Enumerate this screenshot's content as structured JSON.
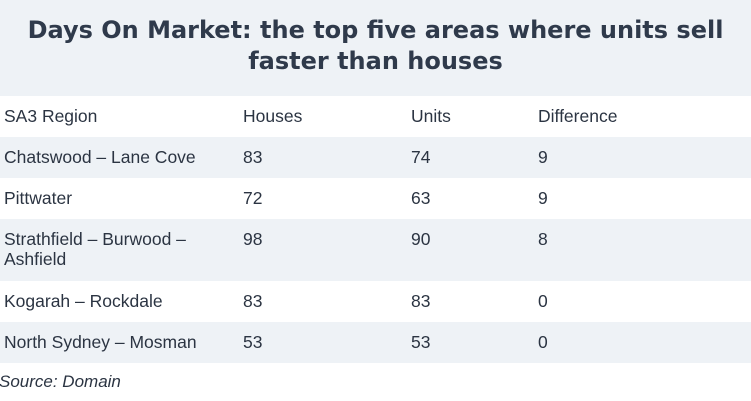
{
  "title": "Days On Market: the top five areas where units sell faster than houses",
  "chart_data": {
    "type": "table",
    "title": "Days On Market: the top five areas where units sell faster than houses",
    "columns": [
      "SA3 Region",
      "Houses",
      "Units",
      "Difference"
    ],
    "rows": [
      [
        "Chatswood – Lane Cove",
        "83",
        "74",
        "9"
      ],
      [
        "Pittwater",
        "72",
        "63",
        "9"
      ],
      [
        "Strathfield – Burwood – Ashfield",
        "98",
        "90",
        "8"
      ],
      [
        "Kogarah – Rockdale",
        "83",
        "83",
        "0"
      ],
      [
        "North Sydney – Mosman",
        "53",
        "53",
        "0"
      ]
    ]
  },
  "source": "Source: Domain",
  "colors": {
    "band": "#eef2f6",
    "text": "#2b3442"
  }
}
